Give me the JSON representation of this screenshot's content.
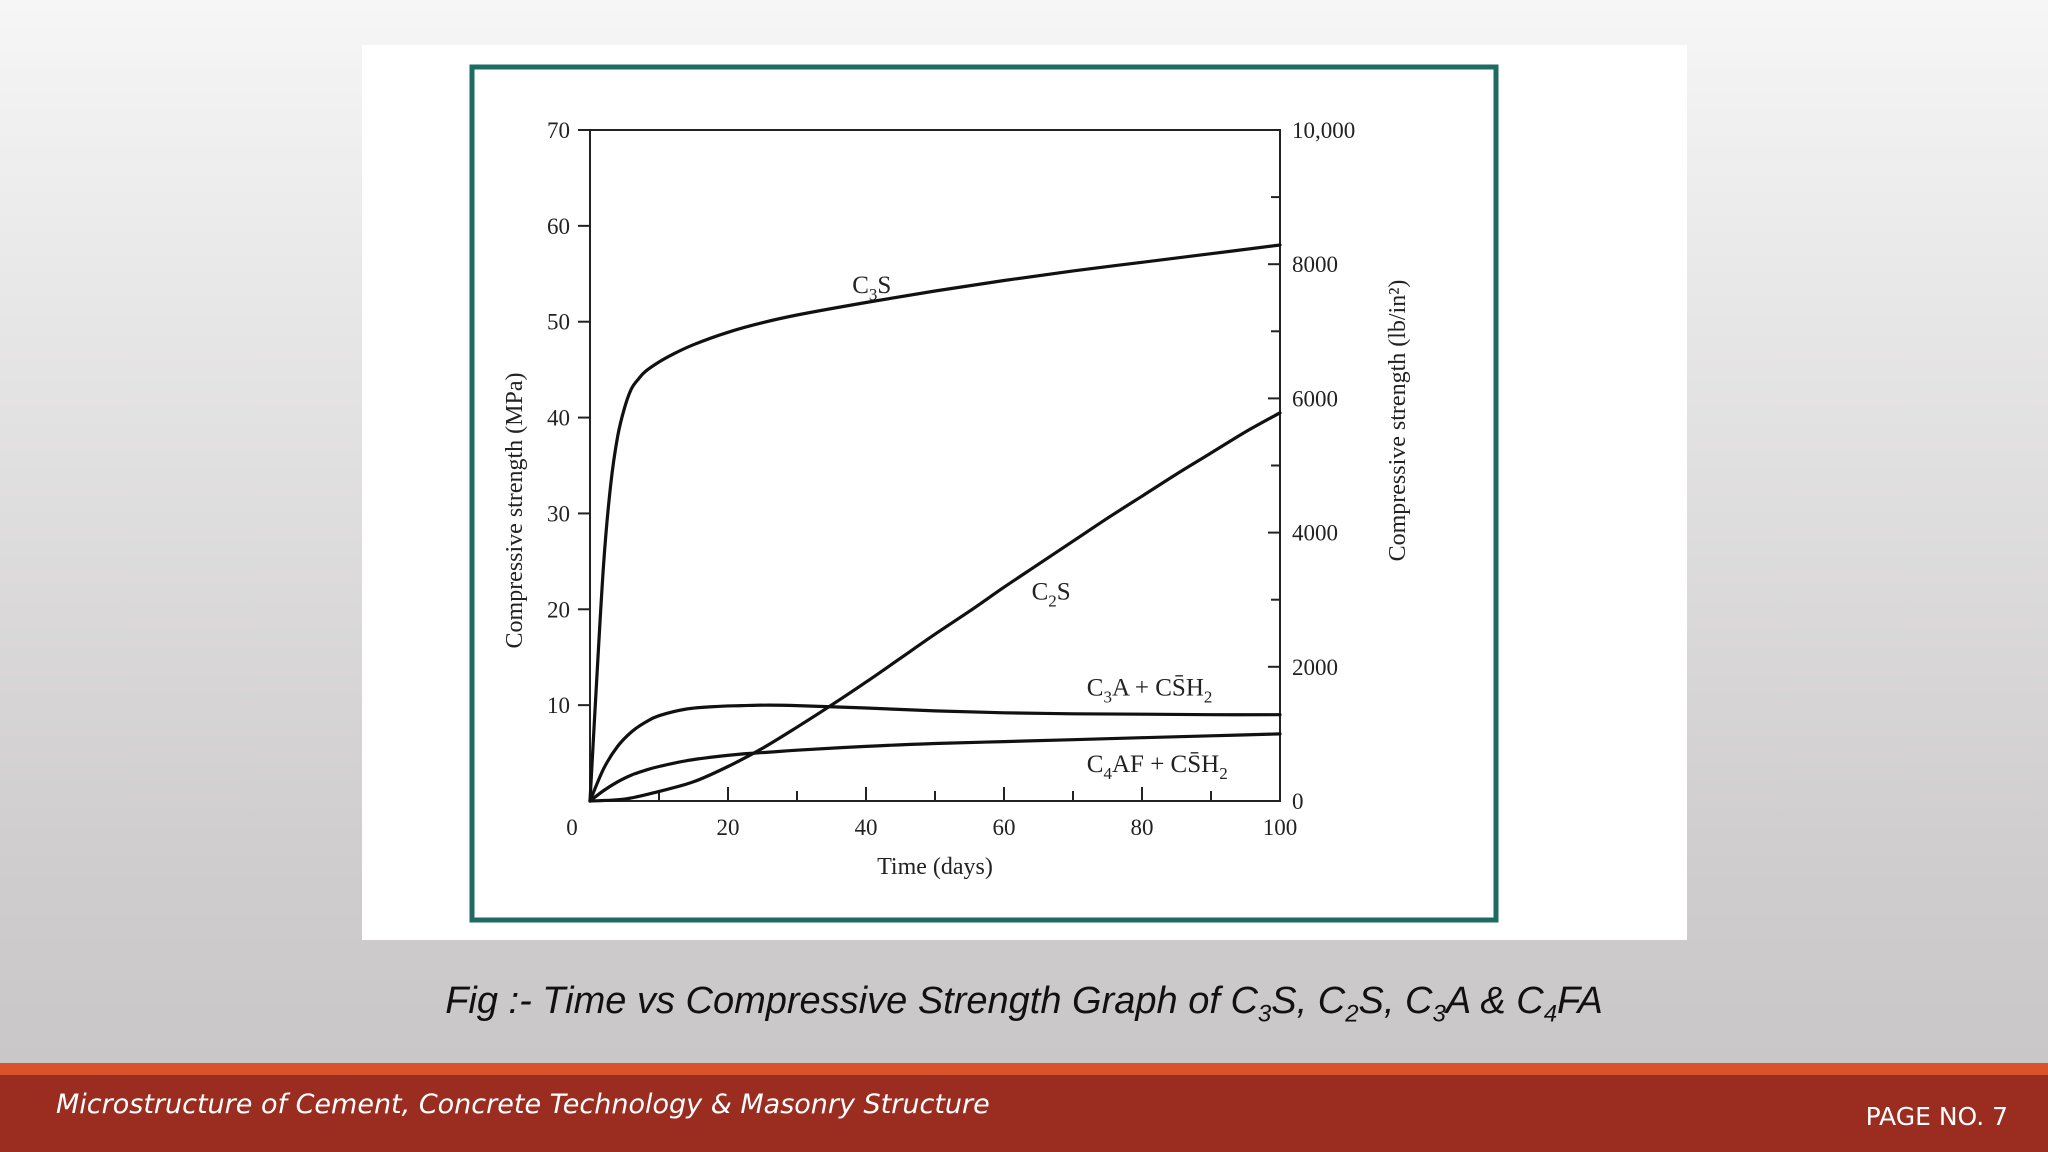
{
  "caption": {
    "prefix": "Fig :- Time vs Compressive Strength Graph of ",
    "parts": [
      {
        "text": "C",
        "sub": "3",
        "tail": "S, "
      },
      {
        "text": "C",
        "sub": "2",
        "tail": "S, "
      },
      {
        "text": "C",
        "sub": "3",
        "tail": "A & "
      },
      {
        "text": "C",
        "sub": "4",
        "tail": "FA"
      }
    ]
  },
  "footer": {
    "title": "Microstructure of Cement, Concrete Technology & Masonry Structure",
    "page": "PAGE NO. 7"
  },
  "colors": {
    "frame": "#1d6b63",
    "footer_bar": "#9a2d20",
    "footer_accent": "#d9532b"
  },
  "chart_data": {
    "type": "line",
    "xlabel": "Time (days)",
    "ylabel": "Compressive strength (MPa)",
    "y2label": "Compressive strength (lb/in²)",
    "xlim": [
      0,
      100
    ],
    "ylim": [
      0,
      70
    ],
    "y2lim": [
      0,
      10000
    ],
    "x_ticks": [
      0,
      20,
      40,
      60,
      80,
      100
    ],
    "y_ticks": [
      10,
      20,
      30,
      40,
      50,
      60,
      70
    ],
    "y2_ticks": [
      "0",
      "2000",
      "4000",
      "6000",
      "8000",
      "10,000"
    ],
    "y2_tick_values": [
      0,
      2000,
      4000,
      6000,
      8000,
      10000
    ],
    "grid": false,
    "series": [
      {
        "name": "C3S",
        "label": {
          "base": "C",
          "sub": "3",
          "rest": "S",
          "at": [
            38,
            53
          ]
        },
        "x": [
          0,
          1,
          2,
          3,
          4,
          5,
          6,
          7,
          8,
          10,
          12,
          15,
          20,
          25,
          30,
          40,
          50,
          60,
          70,
          80,
          90,
          100
        ],
        "y": [
          0,
          13,
          25,
          33,
          38,
          41,
          43,
          44,
          44.8,
          45.8,
          46.6,
          47.6,
          48.9,
          49.9,
          50.7,
          52.0,
          53.2,
          54.3,
          55.3,
          56.2,
          57.1,
          58
        ]
      },
      {
        "name": "C2S",
        "label": {
          "base": "C",
          "sub": "2",
          "rest": "S",
          "at": [
            64,
            21
          ]
        },
        "x": [
          0,
          5,
          10,
          15,
          20,
          25,
          30,
          35,
          40,
          45,
          50,
          55,
          60,
          65,
          70,
          75,
          80,
          85,
          90,
          95,
          100
        ],
        "y": [
          0,
          0.2,
          1,
          2,
          3.6,
          5.5,
          7.7,
          10,
          12.4,
          14.9,
          17.4,
          19.8,
          22.3,
          24.7,
          27.1,
          29.5,
          31.8,
          34.1,
          36.3,
          38.5,
          40.5
        ]
      },
      {
        "name": "C3A + CS̄H2",
        "label": {
          "base": "C",
          "sub": "3",
          "rest": "A + CS̄H",
          "sub2": "2",
          "at": [
            72,
            11
          ]
        },
        "x": [
          0,
          2,
          4,
          6,
          8,
          10,
          14,
          18,
          22,
          26,
          30,
          40,
          50,
          60,
          70,
          80,
          90,
          100
        ],
        "y": [
          0,
          3.4,
          5.7,
          7.2,
          8.2,
          8.9,
          9.6,
          9.85,
          9.95,
          10,
          9.95,
          9.7,
          9.4,
          9.2,
          9.1,
          9.05,
          9.0,
          9.0
        ]
      },
      {
        "name": "C4AF + CS̄H2",
        "label": {
          "base": "C",
          "sub": "4",
          "rest": "AF + CS̄H",
          "sub2": "2",
          "at": [
            72,
            3
          ]
        },
        "x": [
          0,
          2,
          4,
          6,
          8,
          10,
          14,
          18,
          22,
          26,
          30,
          40,
          50,
          60,
          70,
          80,
          90,
          100
        ],
        "y": [
          0,
          1.1,
          2.0,
          2.7,
          3.2,
          3.6,
          4.2,
          4.6,
          4.9,
          5.1,
          5.3,
          5.7,
          6.0,
          6.2,
          6.4,
          6.6,
          6.8,
          7.0
        ]
      }
    ]
  }
}
